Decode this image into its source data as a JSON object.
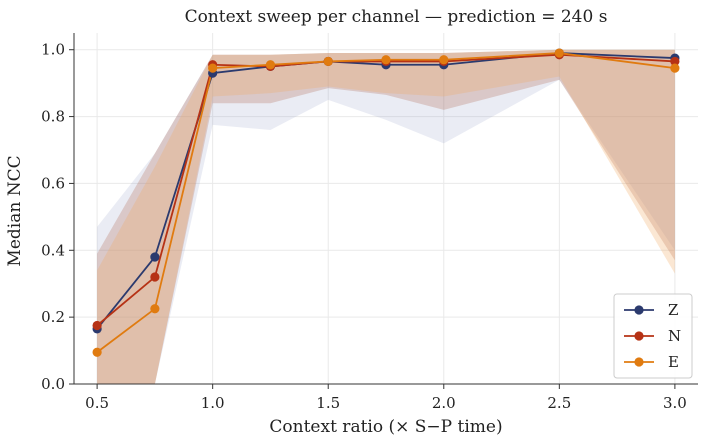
{
  "chart_data": {
    "type": "line",
    "title": "Context sweep per channel — prediction = 240 s",
    "xlabel": "Context ratio (× S−P time)",
    "ylabel": "Median NCC",
    "x": [
      0.5,
      0.75,
      1.0,
      1.25,
      1.5,
      1.75,
      2.0,
      2.5,
      3.0
    ],
    "xlim": [
      0.4,
      3.1
    ],
    "ylim": [
      0.0,
      1.05
    ],
    "xticks": [
      "0.5",
      "1.0",
      "1.5",
      "2.0",
      "2.5",
      "3.0"
    ],
    "yticks": [
      "0.0",
      "0.2",
      "0.4",
      "0.6",
      "0.8",
      "1.0"
    ],
    "grid": true,
    "legend_position": "bottom-right",
    "series": [
      {
        "name": "Z",
        "color": "#2b3a6e",
        "values": [
          0.165,
          0.38,
          0.93,
          0.95,
          0.965,
          0.955,
          0.955,
          0.99,
          0.975
        ],
        "band_lower": [
          0.0,
          0.0,
          0.775,
          0.76,
          0.85,
          0.79,
          0.72,
          0.91,
          0.4
        ],
        "band_upper": [
          0.47,
          0.69,
          0.985,
          0.985,
          0.99,
          0.99,
          0.99,
          1.0,
          1.0
        ]
      },
      {
        "name": "N",
        "color": "#b63215",
        "values": [
          0.175,
          0.32,
          0.955,
          0.95,
          0.965,
          0.965,
          0.965,
          0.985,
          0.965
        ],
        "band_lower": [
          0.0,
          0.0,
          0.84,
          0.84,
          0.885,
          0.865,
          0.82,
          0.91,
          0.37
        ],
        "band_upper": [
          0.39,
          0.69,
          0.985,
          0.985,
          0.99,
          0.99,
          0.99,
          1.0,
          1.0
        ]
      },
      {
        "name": "E",
        "color": "#e07b10",
        "values": [
          0.095,
          0.225,
          0.945,
          0.955,
          0.965,
          0.97,
          0.97,
          0.99,
          0.945
        ],
        "band_lower": [
          0.0,
          0.0,
          0.86,
          0.87,
          0.89,
          0.87,
          0.86,
          0.92,
          0.33
        ],
        "band_upper": [
          0.34,
          0.65,
          0.985,
          0.985,
          0.99,
          0.99,
          0.99,
          1.0,
          1.0
        ]
      }
    ]
  }
}
